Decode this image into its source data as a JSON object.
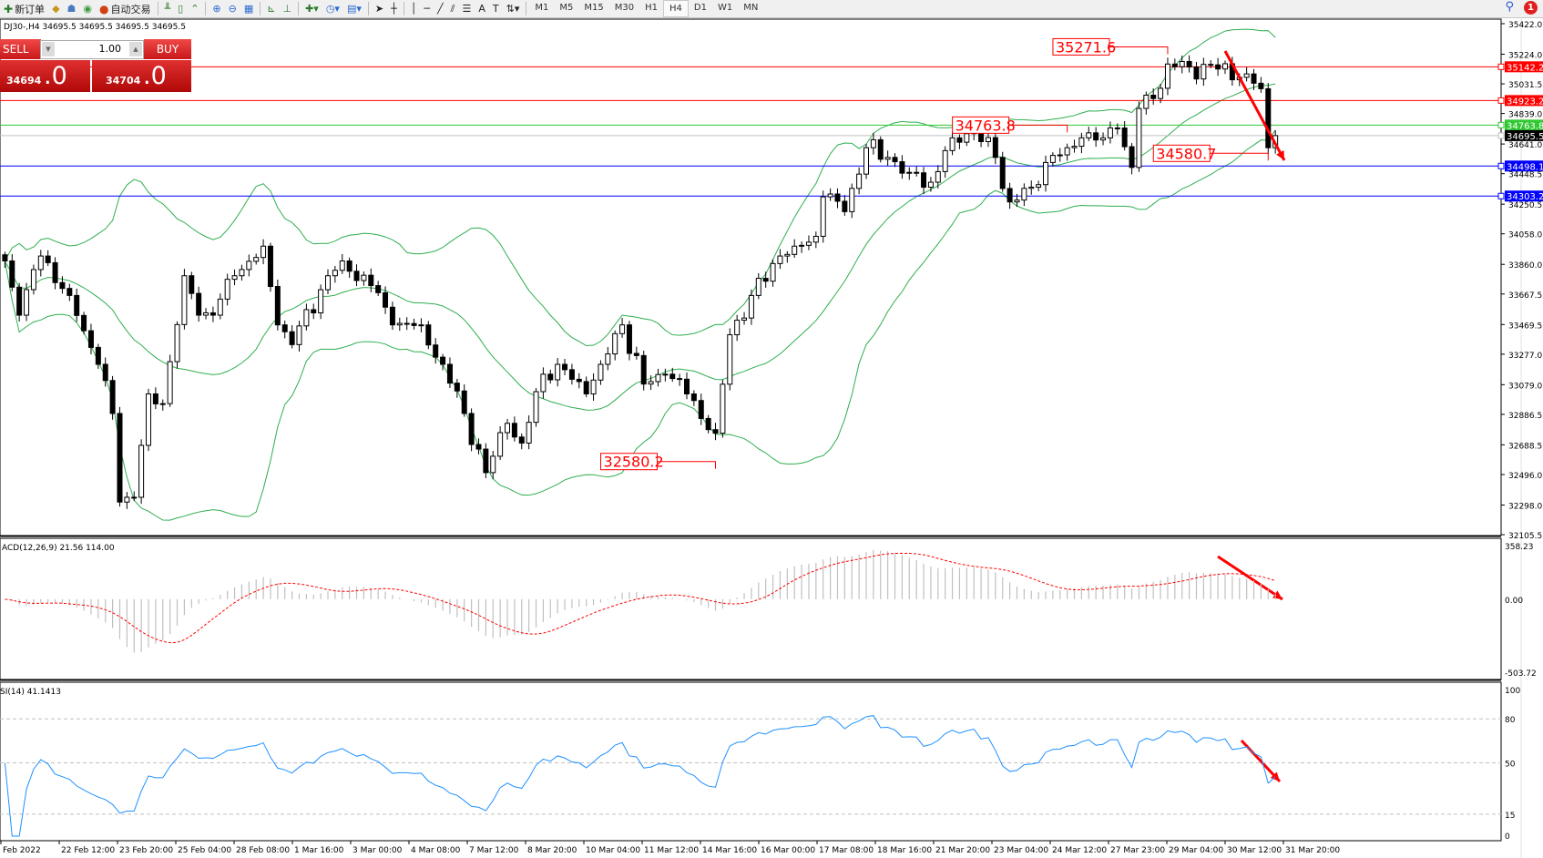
{
  "toolbar": {
    "new_order": "新订单",
    "auto_trading": "自动交易",
    "timeframes": [
      "M1",
      "M5",
      "M15",
      "M30",
      "H1",
      "H4",
      "D1",
      "W1",
      "MN"
    ],
    "active_timeframe": "H4",
    "notification_count": "1"
  },
  "symbol_info": "DJ30-,H4  34695.5 34695.5 34695.5 34695.5",
  "trade_panel": {
    "sell_label": "SELL",
    "buy_label": "BUY",
    "lot": "1.00",
    "sell_price": "34694",
    "sell_price_big": ".0",
    "buy_price": "34704",
    "buy_price_big": ".0"
  },
  "colors": {
    "bull": "#ffffff",
    "bear": "#000000",
    "bands": "#2fae4f",
    "macd_signal": "#ff0000",
    "macd_hist": "#c0c0c0",
    "rsi": "#1e90ff",
    "annotation": "#ff0000"
  },
  "chart_data": [
    {
      "type": "candlestick",
      "panel": "price",
      "bar_count": 178,
      "close_anchors": [
        [
          0,
          33882
        ],
        [
          2,
          33530
        ],
        [
          5,
          33914
        ],
        [
          9,
          33658
        ],
        [
          13,
          33211
        ],
        [
          15,
          32892
        ],
        [
          16,
          32317
        ],
        [
          18,
          32348
        ],
        [
          20,
          33019
        ],
        [
          22,
          32956
        ],
        [
          25,
          33786
        ],
        [
          27,
          33530
        ],
        [
          29,
          33530
        ],
        [
          32,
          33786
        ],
        [
          36,
          33978
        ],
        [
          38,
          33467
        ],
        [
          40,
          33339
        ],
        [
          45,
          33786
        ],
        [
          47,
          33882
        ],
        [
          51,
          33722
        ],
        [
          54,
          33467
        ],
        [
          58,
          33467
        ],
        [
          61,
          33211
        ],
        [
          64,
          32892
        ],
        [
          67,
          32508
        ],
        [
          70,
          32828
        ],
        [
          72,
          32700
        ],
        [
          75,
          33147
        ],
        [
          77,
          33211
        ],
        [
          81,
          33019
        ],
        [
          83,
          33211
        ],
        [
          86,
          33467
        ],
        [
          89,
          33083
        ],
        [
          92,
          33147
        ],
        [
          95,
          33019
        ],
        [
          99,
          32764
        ],
        [
          101,
          33403
        ],
        [
          104,
          33658
        ],
        [
          108,
          33914
        ],
        [
          110,
          33978
        ],
        [
          113,
          34042
        ],
        [
          114,
          34298
        ],
        [
          117,
          34202
        ],
        [
          120,
          34617
        ],
        [
          123,
          34554
        ],
        [
          126,
          34457
        ],
        [
          129,
          34393
        ],
        [
          132,
          34681
        ],
        [
          135,
          34745
        ],
        [
          138,
          34554
        ],
        [
          140,
          34265
        ],
        [
          143,
          34361
        ],
        [
          145,
          34521
        ],
        [
          148,
          34617
        ],
        [
          150,
          34681
        ],
        [
          153,
          34681
        ],
        [
          155,
          34745
        ],
        [
          157,
          34489
        ],
        [
          158,
          34872
        ],
        [
          160,
          34936
        ],
        [
          162,
          35160
        ],
        [
          165,
          35141
        ],
        [
          169,
          35128
        ],
        [
          173,
          35096
        ],
        [
          175,
          35000
        ],
        [
          176,
          34617
        ],
        [
          177,
          34695.5
        ]
      ],
      "indicator": "Bollinger Bands",
      "y_ticks": [
        "35422.0",
        "35224.0",
        "35031.5",
        "34839.0",
        "34641.0",
        "34448.5",
        "34250.5",
        "34058.0",
        "33860.0",
        "33667.5",
        "33469.5",
        "33277.0",
        "33079.0",
        "32886.5",
        "32688.5",
        "32496.0",
        "32298.0",
        "32105.5"
      ],
      "ylim": [
        32105.5,
        35422.0
      ],
      "hlines": [
        {
          "price": 35142.2,
          "label": "35142.2",
          "color": "#ff0000"
        },
        {
          "price": 34923.2,
          "label": "34923.2",
          "color": "#ff0000"
        },
        {
          "price": 34763.8,
          "label": "34763.8",
          "color": "#32c832"
        },
        {
          "price": 34695.5,
          "label": "34695.5",
          "color": "#000000",
          "line_color": "#c0c0c0"
        },
        {
          "price": 34498.1,
          "label": "34498.1",
          "color": "#0000ff"
        },
        {
          "price": 34303.2,
          "label": "34303.2",
          "color": "#0000ff"
        }
      ],
      "annotations": [
        {
          "text": "35271.6",
          "bar": 162,
          "price": 35271.6,
          "side": "left"
        },
        {
          "text": "34763.8",
          "bar": 148,
          "price": 34763.8,
          "side": "left"
        },
        {
          "text": "34580.7",
          "bar": 176,
          "price": 34580.7,
          "side": "left"
        },
        {
          "text": "32580.2",
          "bar": 99,
          "price": 32580.2,
          "side": "left"
        }
      ],
      "x_ticks": [
        "Feb 2022",
        "22 Feb 12:00",
        "23 Feb 20:00",
        "25 Feb 04:00",
        "28 Feb 08:00",
        "1 Mar 16:00",
        "3 Mar 00:00",
        "4 Mar 08:00",
        "7 Mar 12:00",
        "8 Mar 20:00",
        "10 Mar 04:00",
        "11 Mar 12:00",
        "14 Mar 16:00",
        "16 Mar 00:00",
        "17 Mar 08:00",
        "18 Mar 16:00",
        "21 Mar 20:00",
        "23 Mar 04:00",
        "24 Mar 12:00",
        "27 Mar 23:00",
        "29 Mar 04:00",
        "30 Mar 12:00",
        "31 Mar 20:00"
      ]
    },
    {
      "type": "bar",
      "panel": "macd",
      "label": "ACD(12,26,9) 21.56 114.00",
      "y_ticks": [
        "358.23",
        "0.00",
        "-503.72"
      ],
      "ylim": [
        -503.72,
        358.23
      ]
    },
    {
      "type": "line",
      "panel": "rsi",
      "label": "SI(14) 41.1413",
      "y_ticks": [
        "100",
        "80",
        "50",
        "15",
        "0"
      ],
      "levels": [
        80,
        50,
        15
      ],
      "ylim": [
        0,
        100
      ]
    }
  ]
}
